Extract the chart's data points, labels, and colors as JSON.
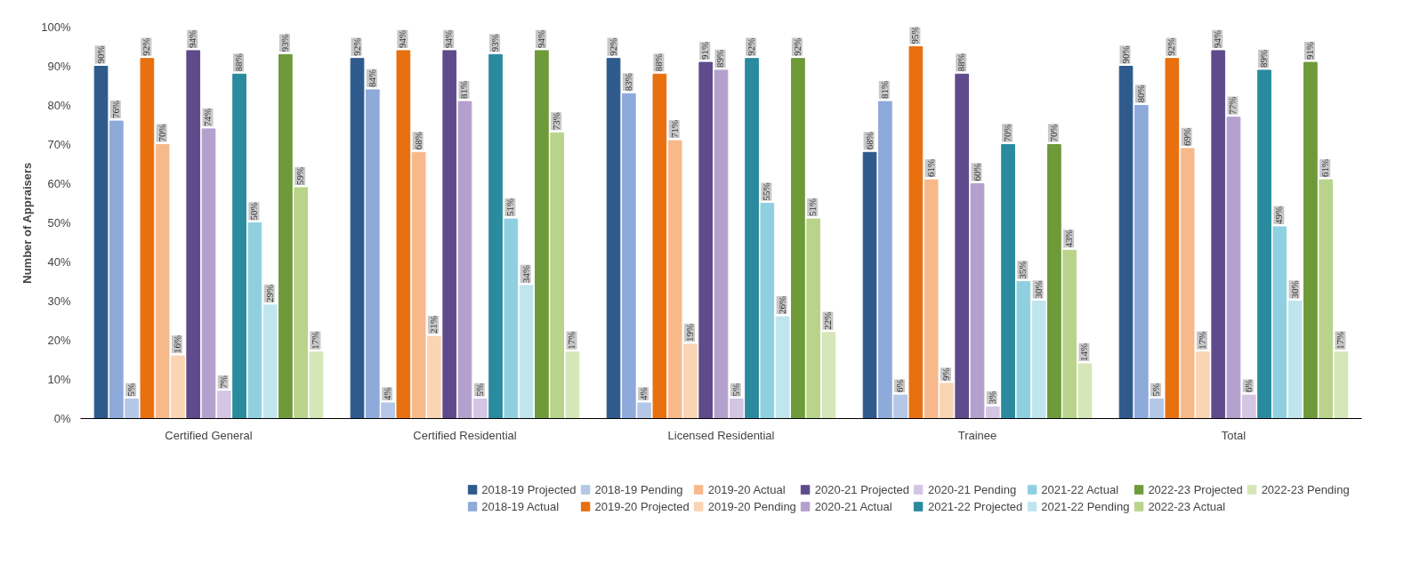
{
  "chart_data": {
    "type": "bar",
    "ylabel": "Number of Appraisers",
    "categories": [
      "Certified General",
      "Certified Residential",
      "Licensed Residential",
      "Trainee",
      "Total"
    ],
    "ylim": [
      0,
      100
    ],
    "yticks": [
      {
        "value": 0,
        "label": "0%"
      },
      {
        "value": 10,
        "label": "10%"
      },
      {
        "value": 20,
        "label": "20%"
      },
      {
        "value": 30,
        "label": "30%"
      },
      {
        "value": 40,
        "label": "40%"
      },
      {
        "value": 50,
        "label": "50%"
      },
      {
        "value": 60,
        "label": "60%"
      },
      {
        "value": 70,
        "label": "70%"
      },
      {
        "value": 80,
        "label": "80%"
      },
      {
        "value": 90,
        "label": "90%"
      },
      {
        "value": 100,
        "label": "100%"
      }
    ],
    "legend": "bottom",
    "grid": false,
    "series": [
      {
        "name": "2018-19 Projected",
        "color": "#2e5a8c",
        "values": [
          90,
          92,
          92,
          68,
          90
        ],
        "value_labels": [
          "90%",
          "92%",
          "92%",
          "68%",
          "90%"
        ]
      },
      {
        "name": "2018-19 Actual",
        "color": "#8eaadb",
        "values": [
          76,
          84,
          83,
          81,
          80
        ],
        "value_labels": [
          "76%",
          "84%",
          "83%",
          "81%",
          "80%"
        ]
      },
      {
        "name": "2018-19 Pending",
        "color": "#b4c7e7",
        "values": [
          5,
          4,
          4,
          6,
          5
        ],
        "value_labels": [
          "5%",
          "4%",
          "4%",
          "6%",
          "5%"
        ]
      },
      {
        "name": "2019-20 Projected",
        "color": "#e8700f",
        "values": [
          92,
          94,
          88,
          95,
          92
        ],
        "value_labels": [
          "92%",
          "94%",
          "88%",
          "95%",
          "92%"
        ]
      },
      {
        "name": "2019-20 Actual",
        "color": "#f8b98a",
        "values": [
          70,
          68,
          71,
          61,
          69
        ],
        "value_labels": [
          "70%",
          "68%",
          "71%",
          "61%",
          "69%"
        ]
      },
      {
        "name": "2019-20 Pending",
        "color": "#fbd4b4",
        "values": [
          16,
          21,
          19,
          9,
          17
        ],
        "value_labels": [
          "16%",
          "21%",
          "19%",
          "9%",
          "17%"
        ]
      },
      {
        "name": "2020-21 Projected",
        "color": "#5f4b8b",
        "values": [
          94,
          94,
          91,
          88,
          94
        ],
        "value_labels": [
          "94%",
          "94%",
          "91%",
          "88%",
          "94%"
        ]
      },
      {
        "name": "2020-21 Actual",
        "color": "#b4a0cc",
        "values": [
          74,
          81,
          89,
          60,
          77
        ],
        "value_labels": [
          "74%",
          "81%",
          "89%",
          "60%",
          "77%"
        ]
      },
      {
        "name": "2020-21 Pending",
        "color": "#d4c6e3",
        "values": [
          7,
          5,
          5,
          3,
          6
        ],
        "value_labels": [
          "7%",
          "5%",
          "5%",
          "3%",
          "6%"
        ]
      },
      {
        "name": "2021-22 Projected",
        "color": "#2a8a9e",
        "values": [
          88,
          93,
          92,
          70,
          89
        ],
        "value_labels": [
          "88%",
          "93%",
          "92%",
          "70%",
          "89%"
        ]
      },
      {
        "name": "2021-22 Actual",
        "color": "#8fd0e0",
        "values": [
          50,
          51,
          55,
          35,
          49
        ],
        "value_labels": [
          "50%",
          "51%",
          "55%",
          "35%",
          "49%"
        ]
      },
      {
        "name": "2021-22 Pending",
        "color": "#bfe5ee",
        "values": [
          29,
          34,
          26,
          30,
          30
        ],
        "value_labels": [
          "29%",
          "34%",
          "26%",
          "30%",
          "30%"
        ]
      },
      {
        "name": "2022-23 Projected",
        "color": "#6e9a3a",
        "values": [
          93,
          94,
          92,
          70,
          91
        ],
        "value_labels": [
          "93%",
          "94%",
          "92%",
          "70%",
          "91%"
        ]
      },
      {
        "name": "2022-23 Actual",
        "color": "#b9d48a",
        "values": [
          59,
          73,
          51,
          43,
          61
        ],
        "value_labels": [
          "59%",
          "73%",
          "51%",
          "43%",
          "61%"
        ]
      },
      {
        "name": "2022-23 Pending",
        "color": "#d5e6b8",
        "values": [
          17,
          17,
          22,
          14,
          17
        ],
        "value_labels": [
          "17%",
          "17%",
          "22%",
          "14%",
          "17%"
        ]
      }
    ]
  }
}
